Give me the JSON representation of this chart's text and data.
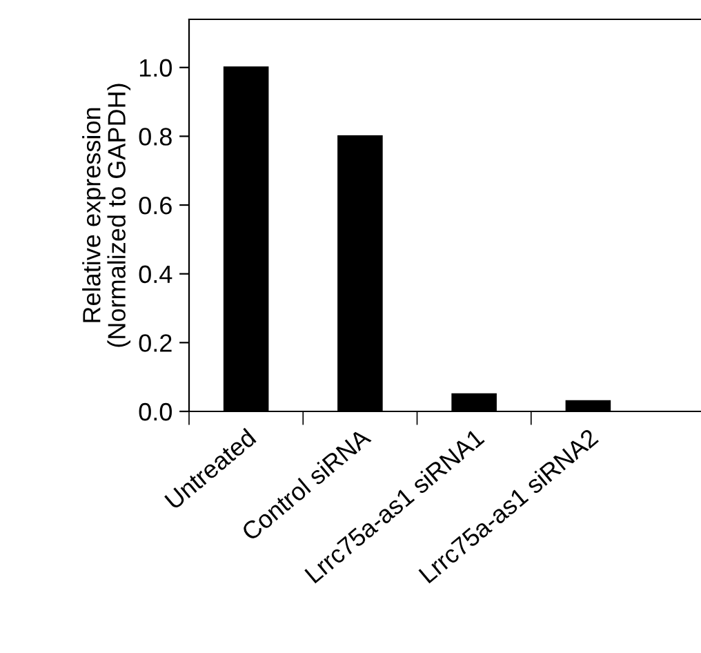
{
  "chart_data": {
    "type": "bar",
    "ylabel": "Relative expression\n(Normalized to GAPDH)",
    "categories": [
      "Untreated",
      "Control siRNA",
      "Lrrc75a-as1 siRNA1",
      "Lrrc75a-as1 siRNA2"
    ],
    "values": [
      1.0,
      0.8,
      0.05,
      0.03
    ],
    "color": "#000000",
    "ylim": [
      0,
      1.14
    ],
    "yticks": [
      {
        "value": 0,
        "label": "0.0"
      },
      {
        "value": 0.2,
        "label": "0.2"
      },
      {
        "value": 0.4,
        "label": "0.4"
      },
      {
        "value": 0.6,
        "label": "0.6"
      },
      {
        "value": 0.8,
        "label": "0.8"
      },
      {
        "value": 1.0,
        "label": "1.0"
      }
    ],
    "grid": false,
    "legend": false
  }
}
